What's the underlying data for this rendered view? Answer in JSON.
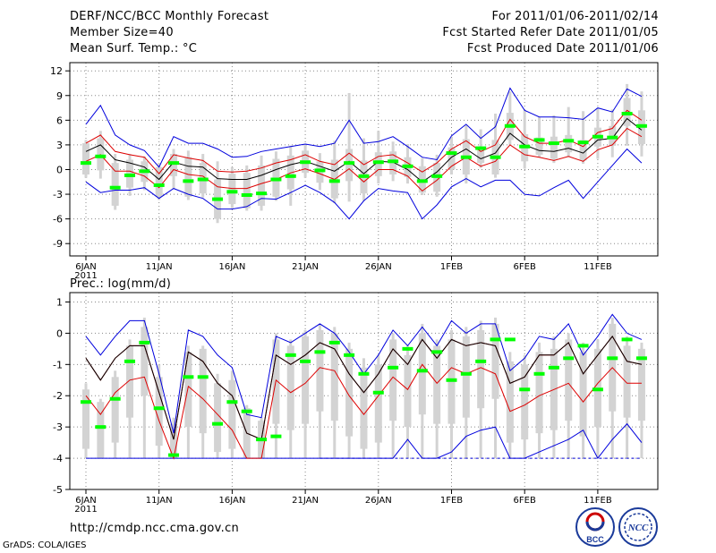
{
  "header": {
    "left": [
      "DERF/NCC/BCC Monthly Forecast",
      "Member Size=40",
      "Mean Surf. Temp.: °C"
    ],
    "right": [
      "For 2011/01/06-2011/02/14",
      "Fcst Started Refer Date 2011/01/05",
      "Fcst Produced Date 2011/01/06"
    ]
  },
  "footer": {
    "url": "http://cmdp.ncc.cma.gov.cn",
    "grads": "GrADS: COLA/IGES",
    "logos": [
      {
        "name": "bcc-logo",
        "text": "BCC"
      },
      {
        "name": "ncc-logo",
        "text": "NCC"
      }
    ]
  },
  "colors": {
    "box": "#d3d3d3",
    "median": "#00ff00",
    "mean": "#000000",
    "inner": "#dd0000",
    "outer": "#0000dd",
    "grid": "#888888"
  },
  "chart_data": [
    {
      "type": "line",
      "title": "Mean Surf. Temp.: °C",
      "x_ticks": [
        "6JAN",
        "11JAN",
        "16JAN",
        "21JAN",
        "26JAN",
        "1FEB",
        "6FEB",
        "11FEB"
      ],
      "x_year": "2011",
      "ylim": [
        -10.5,
        13
      ],
      "y_ticks": [
        -9,
        -6,
        -3,
        0,
        3,
        6,
        9,
        12
      ],
      "series": [
        {
          "name": "outer-upper",
          "values": [
            5.5,
            7.8,
            4.2,
            3,
            2.3,
            0.3,
            4,
            3.2,
            3.2,
            2.5,
            1.5,
            1.6,
            2.2,
            2.5,
            2.8,
            3.1,
            2.8,
            3.2,
            6,
            3.2,
            3.4,
            4,
            2.8,
            1.5,
            1.2,
            4.1,
            5.5,
            3.8,
            5.2,
            9.9,
            7.2,
            6.4,
            6.4,
            6.3,
            6.1,
            7.5,
            7,
            9.8,
            8.9
          ]
        },
        {
          "name": "inner-upper",
          "values": [
            3.2,
            4.2,
            2.2,
            1.8,
            1.5,
            -0.5,
            1.8,
            1.4,
            1.1,
            -0.2,
            -0.3,
            -0.2,
            0.2,
            0.8,
            1.2,
            1.8,
            1,
            0.6,
            2,
            0.6,
            1.6,
            1.8,
            0.8,
            -0.3,
            0.8,
            2.5,
            3.5,
            2.2,
            3,
            6.1,
            4,
            3.2,
            3.2,
            3.6,
            2.8,
            4.5,
            5,
            7.2,
            6
          ]
        },
        {
          "name": "mean",
          "values": [
            2.2,
            3,
            1.2,
            0.8,
            0.3,
            -1.2,
            0.9,
            0.4,
            0.3,
            -1.1,
            -1.2,
            -1.2,
            -0.7,
            0,
            0.6,
            1,
            0.4,
            -0.2,
            1,
            -0.5,
            1,
            0.9,
            0,
            -1.5,
            -0.3,
            1.5,
            2.5,
            1.3,
            2,
            4.4,
            3,
            2.3,
            2.2,
            2.6,
            2,
            3.6,
            3.8,
            6.2,
            4.8
          ]
        },
        {
          "name": "inner-lower",
          "values": [
            1,
            1.8,
            -0.2,
            -0.2,
            -0.8,
            -2.2,
            0,
            -0.6,
            -0.8,
            -2.1,
            -2.3,
            -2.3,
            -1.7,
            -1.2,
            -0.4,
            0.1,
            -0.5,
            -1.2,
            0.1,
            -1.5,
            0,
            0,
            -0.8,
            -2.6,
            -1.3,
            0.4,
            1.5,
            0.4,
            1,
            3,
            1.8,
            1.5,
            1.1,
            1.6,
            1,
            2.4,
            3,
            5,
            4
          ]
        },
        {
          "name": "outer-lower",
          "values": [
            -1.5,
            -2.8,
            -2.5,
            -2.5,
            -2.2,
            -3.5,
            -2.3,
            -3,
            -3.5,
            -4.8,
            -4.8,
            -4.5,
            -3.5,
            -3.6,
            -2.8,
            -1.9,
            -2.8,
            -4,
            -6,
            -3.8,
            -2.3,
            -2.6,
            -2.8,
            -6,
            -4.3,
            -2.1,
            -1.1,
            -2.1,
            -1.3,
            -1.3,
            -3,
            -3.2,
            -2.2,
            -1.3,
            -3.5,
            -1.5,
            0.5,
            2.5,
            0.8
          ]
        },
        {
          "name": "median",
          "values": [
            0.8,
            1.6,
            -2.2,
            -0.7,
            -0.2,
            -1.9,
            0.8,
            -1.4,
            -1.2,
            -3.6,
            -2.7,
            -3.1,
            -2.9,
            -1.2,
            -0.8,
            0.9,
            -0.1,
            -1.4,
            0.8,
            -0.8,
            0.9,
            1,
            0.4,
            -1.4,
            -0.8,
            2,
            1.5,
            2.6,
            1.5,
            5.3,
            2.8,
            3.6,
            3.2,
            3.5,
            3.3,
            4,
            3.9,
            6.8,
            5.3
          ]
        },
        {
          "name": "box-high",
          "values": [
            3.2,
            3.8,
            0.8,
            1.2,
            1,
            0.3,
            1.9,
            1.5,
            0.8,
            -1.2,
            -0.5,
            -0.4,
            0.5,
            1.3,
            1.7,
            2.3,
            1,
            1.2,
            2.5,
            1.1,
            2.1,
            2.2,
            1.5,
            0.4,
            0.8,
            2.7,
            3.7,
            2.6,
            3.6,
            6.9,
            4.3,
            3.9,
            4,
            4.2,
            3.6,
            5.1,
            5.3,
            8.7,
            7.2
          ]
        },
        {
          "name": "box-low",
          "values": [
            -0.6,
            -0.1,
            -4.4,
            -2.2,
            -1.5,
            -3.3,
            -0.8,
            -3.3,
            -2.9,
            -6,
            -4.2,
            -4.7,
            -4.4,
            -3.3,
            -2.4,
            -0.4,
            -1.6,
            -3.5,
            -1.4,
            -2.9,
            -0.8,
            -0.6,
            -0.9,
            -2.8,
            -2.7,
            0,
            -0.6,
            0.8,
            -0.6,
            3.6,
            1,
            1.8,
            1.3,
            2.1,
            1.1,
            2.8,
            2.9,
            5.3,
            3.1
          ]
        },
        {
          "name": "whisker-high",
          "values": [
            3.6,
            4.7,
            1.9,
            1.9,
            1.6,
            0.8,
            2.5,
            2.3,
            1.9,
            1,
            0.3,
            0.5,
            1.7,
            2.2,
            2.9,
            3.1,
            2,
            3.5,
            9.3,
            3.8,
            4.7,
            3.4,
            3.1,
            1.4,
            1.8,
            4,
            5.4,
            4.9,
            6.8,
            9.5,
            7.2,
            6.4,
            6.6,
            7.6,
            7.1,
            7.5,
            7.3,
            10.4,
            9.5
          ]
        },
        {
          "name": "whisker-low",
          "values": [
            -1,
            -1.1,
            -4.9,
            -3.2,
            -2.5,
            -3.7,
            -2.4,
            -3.7,
            -3.4,
            -6.5,
            -4.7,
            -5,
            -5,
            -3.8,
            -4.4,
            -1,
            -2.5,
            -4.1,
            -3.9,
            -3.8,
            -1.7,
            -1.4,
            -1.7,
            -3.1,
            -3.3,
            -0.6,
            -1.7,
            0.2,
            -1,
            3,
            0.1,
            1.5,
            0.8,
            1.5,
            0.7,
            1.3,
            1.5,
            2.9,
            1.6
          ]
        }
      ]
    },
    {
      "type": "line",
      "title": "Prec.: log(mm/d)",
      "x_ticks": [
        "6JAN",
        "11JAN",
        "16JAN",
        "21JAN",
        "26JAN",
        "1FEB",
        "6FEB",
        "11FEB"
      ],
      "x_year": "2011",
      "ylim": [
        -5,
        1.3
      ],
      "y_ticks": [
        -5,
        -4,
        -3,
        -2,
        -1,
        0,
        1
      ],
      "series": [
        {
          "name": "outer-upper",
          "values": [
            -0.1,
            -0.7,
            -0.1,
            0.4,
            0.4,
            -1.3,
            -3.2,
            0.1,
            -0.1,
            -0.7,
            -1.1,
            -2.6,
            -2.7,
            -0.1,
            -0.3,
            0,
            0.3,
            0,
            -0.6,
            -1.3,
            -0.7,
            0.1,
            -0.4,
            0.2,
            -0.4,
            0.4,
            0,
            0.3,
            0.3,
            -1.2,
            -0.8,
            -0.1,
            -0.2,
            0.3,
            -0.7,
            -0.1,
            0.6,
            0,
            -0.2
          ]
        },
        {
          "name": "inner-upper",
          "values": [
            -0.8,
            -1.5,
            -0.8,
            -0.4,
            -0.4,
            -1.9,
            -3.4,
            -0.6,
            -0.9,
            -1.6,
            -2,
            -3.2,
            -3.4,
            -0.7,
            -1,
            -0.7,
            -0.3,
            -0.5,
            -1.3,
            -1.9,
            -1.3,
            -0.5,
            -1,
            -0.2,
            -0.8,
            -0.2,
            -0.4,
            -0.3,
            -0.4,
            -1.6,
            -1.4,
            -0.7,
            -0.7,
            -0.3,
            -1.3,
            -0.7,
            -0.1,
            -0.9,
            -1
          ]
        },
        {
          "name": "mean",
          "values": [
            -0.8,
            -1.5,
            -0.8,
            -0.4,
            -0.4,
            -1.9,
            -3.4,
            -0.6,
            -0.9,
            -1.6,
            -2,
            -3.2,
            -3.4,
            -0.7,
            -1,
            -0.7,
            -0.3,
            -0.5,
            -1.3,
            -1.9,
            -1.3,
            -0.5,
            -1,
            -0.2,
            -0.8,
            -0.2,
            -0.4,
            -0.3,
            -0.4,
            -1.6,
            -1.4,
            -0.7,
            -0.7,
            -0.3,
            -1.3,
            -0.7,
            -0.1,
            -0.9,
            -1
          ]
        },
        {
          "name": "inner-lower",
          "values": [
            -2,
            -2.6,
            -1.9,
            -1.5,
            -1.4,
            -2.8,
            -4,
            -1.7,
            -2.1,
            -2.6,
            -3.1,
            -4,
            -4,
            -1.5,
            -1.9,
            -1.6,
            -1.1,
            -1.2,
            -2,
            -2.6,
            -2,
            -1.4,
            -1.8,
            -1,
            -1.6,
            -1.1,
            -1.3,
            -1.1,
            -1.3,
            -2.5,
            -2.3,
            -2,
            -1.8,
            -1.6,
            -2.2,
            -1.6,
            -1.1,
            -1.6,
            -1.6
          ]
        },
        {
          "name": "outer-lower",
          "values": [
            -4,
            -4,
            -4,
            -4,
            -4,
            -4,
            -4,
            -4,
            -4,
            -4,
            -4,
            -4,
            -4,
            -4,
            -4,
            -4,
            -4,
            -4,
            -4,
            -4,
            -4,
            -4,
            -3.4,
            -4,
            -4,
            -3.8,
            -3.3,
            -3.1,
            -3,
            -4,
            -4,
            -3.8,
            -3.6,
            -3.4,
            -3.1,
            -4,
            -3.4,
            -2.9,
            -3.5
          ]
        },
        {
          "name": "median",
          "values": [
            -2.2,
            -3,
            -2.1,
            -0.9,
            -0.3,
            -2.4,
            -3.9,
            -1.4,
            -1.4,
            -2.9,
            -2.2,
            -2.5,
            -3.4,
            -3.3,
            -0.7,
            -0.9,
            -0.6,
            -0.3,
            -0.7,
            -1.3,
            -1.9,
            -1.1,
            -0.5,
            -1.2,
            -0.6,
            -1.5,
            -1.3,
            -0.9,
            -0.2,
            -0.2,
            -1.8,
            -1.3,
            -1.1,
            -0.8,
            -0.4,
            -1.8,
            -0.8,
            -0.2,
            -0.8
          ]
        },
        {
          "name": "box-high",
          "values": [
            -1.8,
            -2.2,
            -1.4,
            -0.4,
            0.2,
            -1.4,
            -2.9,
            -0.6,
            -0.5,
            -1.6,
            -1.5,
            -2.4,
            -2.8,
            -0.2,
            -0.4,
            -0.1,
            0.1,
            0,
            -0.5,
            -1.1,
            -1,
            -0.2,
            -0.7,
            0,
            -0.4,
            -0.2,
            -0.1,
            0.1,
            0.3,
            -0.9,
            -1,
            -0.6,
            -0.5,
            -0.2,
            -0.6,
            -0.5,
            0.3,
            -0.4,
            -0.5
          ]
        },
        {
          "name": "box-low",
          "values": [
            -3.7,
            -4,
            -3.5,
            -2.7,
            -2,
            -3.6,
            -4,
            -3,
            -3.2,
            -3.8,
            -3.7,
            -4,
            -4,
            -2.9,
            -3.1,
            -2.9,
            -2.5,
            -2.8,
            -3.3,
            -3.7,
            -3.5,
            -2.8,
            -3,
            -2.6,
            -2.9,
            -2.9,
            -2.7,
            -2.4,
            -2.1,
            -3.5,
            -3.4,
            -3.2,
            -3.1,
            -2.8,
            -3.3,
            -3,
            -2.5,
            -2.7,
            -2.8
          ]
        },
        {
          "name": "whisker-high",
          "values": [
            -1.6,
            -2.1,
            -1.2,
            -0.2,
            0.5,
            -1,
            -2.7,
            -0.4,
            -0.4,
            -1.3,
            -1.2,
            -2.3,
            -2.7,
            0,
            -0.2,
            0.1,
            0.3,
            0.2,
            -0.3,
            -0.8,
            -0.7,
            0,
            -0.4,
            0.3,
            -0.2,
            0.1,
            0.2,
            0.4,
            0.5,
            -0.6,
            -0.7,
            -0.3,
            -0.1,
            0,
            -0.3,
            -0.2,
            0.5,
            -0.1,
            -0.3
          ]
        },
        {
          "name": "whisker-low",
          "values": [
            -4,
            -4,
            -4,
            -4,
            -4,
            -4,
            -4,
            -4,
            -4,
            -4,
            -4,
            -4,
            -4,
            -4,
            -4,
            -4,
            -4,
            -4,
            -4,
            -4,
            -4,
            -4,
            -4,
            -4,
            -4,
            -4,
            -4,
            -4,
            -4,
            -4,
            -4,
            -4,
            -4,
            -4,
            -4,
            -4,
            -4,
            -4,
            -4
          ]
        }
      ]
    }
  ]
}
